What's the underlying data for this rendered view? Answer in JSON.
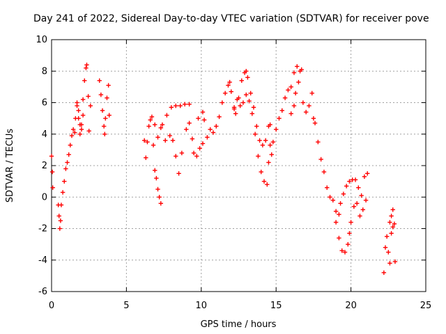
{
  "chart_data": {
    "type": "scatter",
    "title": "Day 241 of 2022, Sidereal Day-to-day VTEC variation (SDTVAR) for receiver pove",
    "xlabel": "GPS time / hours",
    "ylabel": "SDTVAR / TECUs",
    "xlim": [
      0,
      25
    ],
    "ylim": [
      -6,
      10
    ],
    "xticks": [
      "0",
      "5",
      "10",
      "15",
      "20",
      "25"
    ],
    "yticks": [
      "-6",
      "-4",
      "-2",
      "0",
      "2",
      "4",
      "6",
      "8",
      "10"
    ],
    "grid": true,
    "marker": "+",
    "color": "#ff0000",
    "series": [
      {
        "name": "SDTVAR",
        "points": [
          [
            0.0,
            2.6
          ],
          [
            0.05,
            1.6
          ],
          [
            0.08,
            0.6
          ],
          [
            0.45,
            -0.5
          ],
          [
            0.5,
            -1.2
          ],
          [
            0.55,
            -2.0
          ],
          [
            0.6,
            -1.5
          ],
          [
            0.65,
            -0.5
          ],
          [
            0.75,
            0.3
          ],
          [
            0.85,
            1.0
          ],
          [
            0.95,
            1.8
          ],
          [
            1.05,
            2.2
          ],
          [
            1.15,
            2.7
          ],
          [
            1.25,
            3.3
          ],
          [
            1.35,
            3.9
          ],
          [
            1.45,
            4.3
          ],
          [
            1.55,
            4.1
          ],
          [
            1.6,
            5.0
          ],
          [
            1.7,
            5.8
          ],
          [
            1.8,
            5.5
          ],
          [
            1.9,
            4.6
          ],
          [
            2.0,
            4.3
          ],
          [
            2.1,
            5.2
          ],
          [
            2.2,
            7.4
          ],
          [
            2.3,
            8.2
          ],
          [
            2.35,
            8.4
          ],
          [
            2.45,
            6.4
          ],
          [
            2.5,
            4.2
          ],
          [
            2.6,
            5.8
          ],
          [
            1.7,
            6.0
          ],
          [
            1.8,
            5.0
          ],
          [
            1.9,
            4.0
          ],
          [
            2.0,
            4.6
          ],
          [
            2.1,
            6.2
          ],
          [
            3.2,
            7.4
          ],
          [
            3.3,
            6.5
          ],
          [
            3.4,
            5.5
          ],
          [
            3.5,
            4.5
          ],
          [
            3.55,
            4.0
          ],
          [
            3.6,
            5.0
          ],
          [
            3.7,
            6.3
          ],
          [
            3.8,
            7.1
          ],
          [
            3.85,
            5.2
          ],
          [
            6.2,
            3.6
          ],
          [
            6.3,
            2.5
          ],
          [
            6.4,
            3.5
          ],
          [
            6.5,
            4.5
          ],
          [
            6.6,
            4.9
          ],
          [
            6.7,
            5.1
          ],
          [
            6.8,
            3.3
          ],
          [
            6.9,
            1.7
          ],
          [
            7.0,
            1.2
          ],
          [
            7.1,
            0.5
          ],
          [
            7.2,
            0.0
          ],
          [
            7.3,
            -0.4
          ],
          [
            6.9,
            4.6
          ],
          [
            7.1,
            3.8
          ],
          [
            7.4,
            4.6
          ],
          [
            7.7,
            5.2
          ],
          [
            8.0,
            5.7
          ],
          [
            8.3,
            5.8
          ],
          [
            8.6,
            5.8
          ],
          [
            8.9,
            5.9
          ],
          [
            9.2,
            5.9
          ],
          [
            7.3,
            4.4
          ],
          [
            7.6,
            3.6
          ],
          [
            7.9,
            3.9
          ],
          [
            8.1,
            3.6
          ],
          [
            8.3,
            2.6
          ],
          [
            8.5,
            1.5
          ],
          [
            8.7,
            2.8
          ],
          [
            9.0,
            4.3
          ],
          [
            9.2,
            4.7
          ],
          [
            9.4,
            3.7
          ],
          [
            9.5,
            2.8
          ],
          [
            9.7,
            2.6
          ],
          [
            9.9,
            3.1
          ],
          [
            10.1,
            3.4
          ],
          [
            9.8,
            5.0
          ],
          [
            10.1,
            5.4
          ],
          [
            10.2,
            4.9
          ],
          [
            10.4,
            3.8
          ],
          [
            10.6,
            4.3
          ],
          [
            10.8,
            4.1
          ],
          [
            11.0,
            4.5
          ],
          [
            11.2,
            5.1
          ],
          [
            11.4,
            6.0
          ],
          [
            11.6,
            6.6
          ],
          [
            11.8,
            7.1
          ],
          [
            11.9,
            7.3
          ],
          [
            12.0,
            6.7
          ],
          [
            12.2,
            5.6
          ],
          [
            12.3,
            5.3
          ],
          [
            12.5,
            6.3
          ],
          [
            12.7,
            7.4
          ],
          [
            12.9,
            7.9
          ],
          [
            13.0,
            8.0
          ],
          [
            13.1,
            7.6
          ],
          [
            13.3,
            6.6
          ],
          [
            13.5,
            5.7
          ],
          [
            13.7,
            4.5
          ],
          [
            13.9,
            3.6
          ],
          [
            14.1,
            3.3
          ],
          [
            14.3,
            3.6
          ],
          [
            14.5,
            4.5
          ],
          [
            14.6,
            4.6
          ],
          [
            12.2,
            5.7
          ],
          [
            12.4,
            6.2
          ],
          [
            12.6,
            5.8
          ],
          [
            12.8,
            6.0
          ],
          [
            13.0,
            6.5
          ],
          [
            13.2,
            6.1
          ],
          [
            13.4,
            5.3
          ],
          [
            13.6,
            4.0
          ],
          [
            13.8,
            2.6
          ],
          [
            14.0,
            1.6
          ],
          [
            14.2,
            1.0
          ],
          [
            14.4,
            0.8
          ],
          [
            14.5,
            2.2
          ],
          [
            14.6,
            3.3
          ],
          [
            14.7,
            2.7
          ],
          [
            14.8,
            3.5
          ],
          [
            15.0,
            4.3
          ],
          [
            15.2,
            5.0
          ],
          [
            15.4,
            5.5
          ],
          [
            15.6,
            6.3
          ],
          [
            15.8,
            6.8
          ],
          [
            16.0,
            7.0
          ],
          [
            16.2,
            7.9
          ],
          [
            16.4,
            8.3
          ],
          [
            16.6,
            8.0
          ],
          [
            16.0,
            5.3
          ],
          [
            16.2,
            5.8
          ],
          [
            16.3,
            6.6
          ],
          [
            16.5,
            7.3
          ],
          [
            16.7,
            8.1
          ],
          [
            16.8,
            6.0
          ],
          [
            17.0,
            5.4
          ],
          [
            17.2,
            5.8
          ],
          [
            17.4,
            6.6
          ],
          [
            17.5,
            5.0
          ],
          [
            17.6,
            4.7
          ],
          [
            17.8,
            3.5
          ],
          [
            18.0,
            2.4
          ],
          [
            18.2,
            1.6
          ],
          [
            18.4,
            0.6
          ],
          [
            18.6,
            0.0
          ],
          [
            18.8,
            -0.2
          ],
          [
            19.0,
            -0.9
          ],
          [
            19.2,
            -1.1
          ],
          [
            19.3,
            -0.4
          ],
          [
            19.5,
            0.2
          ],
          [
            19.7,
            0.7
          ],
          [
            19.9,
            1.0
          ],
          [
            20.1,
            1.1
          ],
          [
            20.3,
            1.1
          ],
          [
            20.5,
            0.6
          ],
          [
            20.7,
            0.1
          ],
          [
            20.9,
            1.3
          ],
          [
            21.1,
            1.5
          ],
          [
            19.0,
            -1.6
          ],
          [
            19.2,
            -2.6
          ],
          [
            19.4,
            -3.4
          ],
          [
            19.6,
            -3.5
          ],
          [
            19.8,
            -3.0
          ],
          [
            19.9,
            -2.3
          ],
          [
            20.0,
            -1.6
          ],
          [
            20.2,
            -0.6
          ],
          [
            20.4,
            -0.4
          ],
          [
            20.6,
            -1.2
          ],
          [
            20.8,
            -0.8
          ],
          [
            21.0,
            -0.2
          ],
          [
            22.2,
            -4.8
          ],
          [
            22.3,
            -3.2
          ],
          [
            22.4,
            -2.5
          ],
          [
            22.5,
            -3.5
          ],
          [
            22.6,
            -4.2
          ],
          [
            22.7,
            -2.3
          ],
          [
            22.8,
            -1.9
          ],
          [
            22.9,
            -1.7
          ],
          [
            22.95,
            -4.1
          ],
          [
            22.6,
            -1.6
          ],
          [
            22.7,
            -1.2
          ],
          [
            22.8,
            -0.8
          ]
        ]
      }
    ]
  }
}
